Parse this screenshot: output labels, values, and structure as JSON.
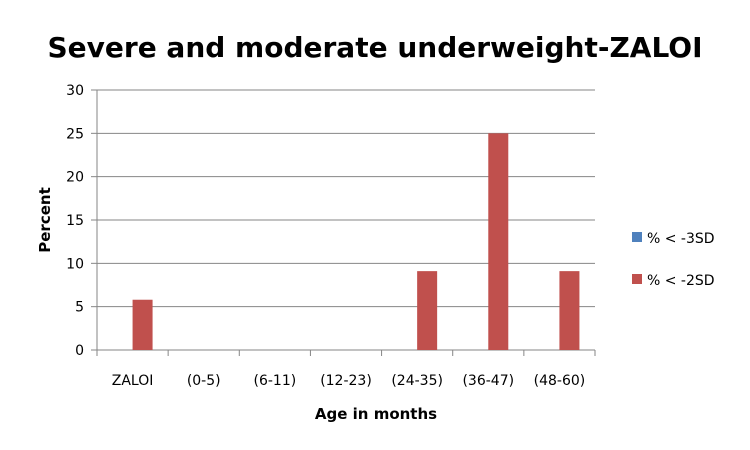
{
  "chart_data": {
    "type": "bar",
    "title": "Severe and moderate underweight-ZALOI",
    "xlabel": "Age in months",
    "ylabel": "Percent",
    "categories": [
      "ZALOI",
      "(0-5)",
      "(6-11)",
      "(12-23)",
      "(24-35)",
      "(36-47)",
      "(48-60)"
    ],
    "ylim": [
      0,
      30
    ],
    "yticks": [
      0,
      5,
      10,
      15,
      20,
      25,
      30
    ],
    "grid": true,
    "legend_position": "right",
    "series": [
      {
        "name": "% < -3SD",
        "color": "#4F81BD",
        "values": [
          0,
          0,
          0,
          0,
          0,
          0,
          0
        ]
      },
      {
        "name": "% < -2SD",
        "color": "#C0504D",
        "values": [
          5.8,
          0,
          0,
          0,
          9.1,
          25,
          9.1
        ]
      }
    ]
  }
}
